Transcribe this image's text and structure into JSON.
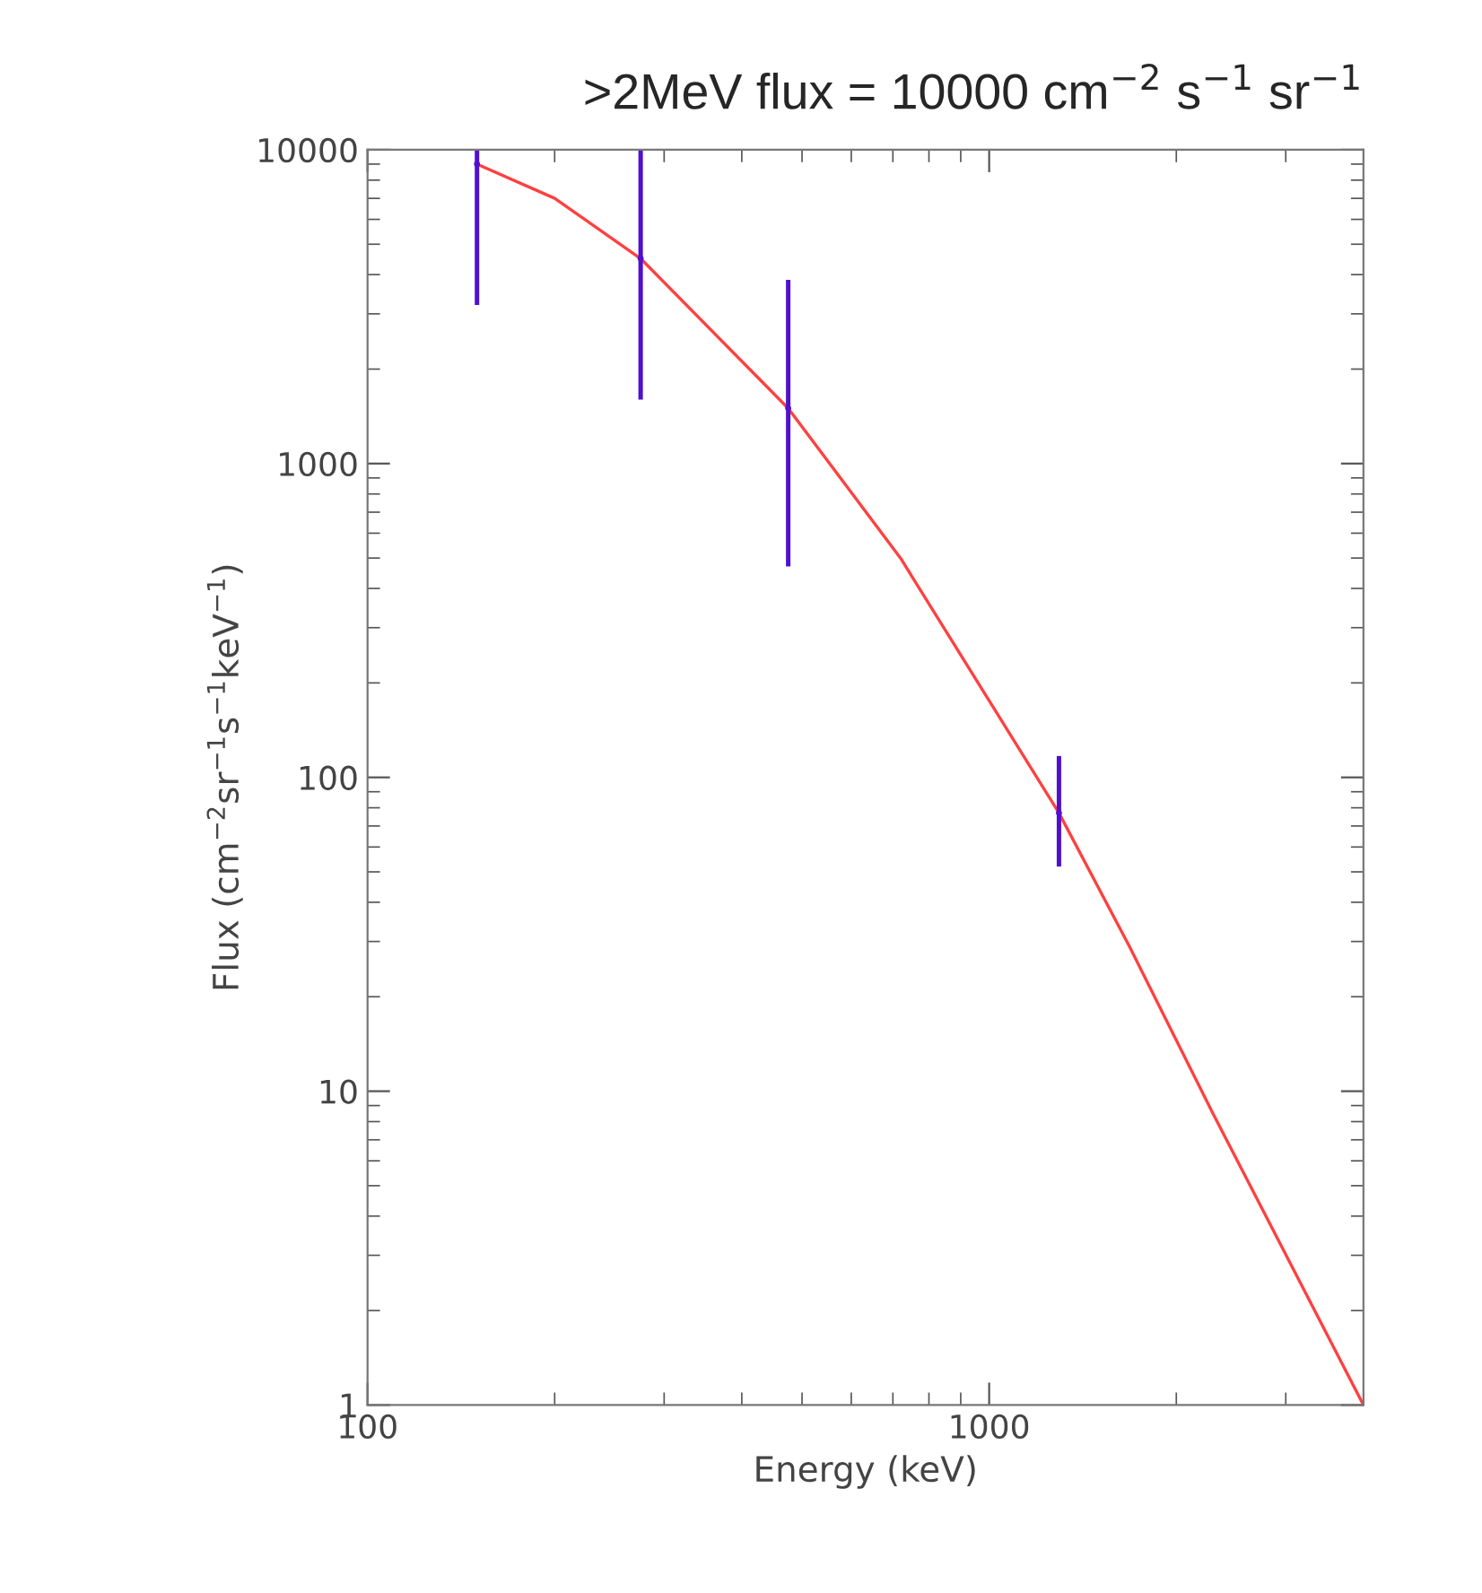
{
  "chart_data": {
    "type": "line",
    "title": ">2MeV flux = 10000 cm$^{−2}$ s$^{−1}$ sr$^{−1}$",
    "xlabel": "Energy (keV)",
    "ylabel": "Flux (cm$^{−2}$sr$^{−1}$s$^{−1}$keV$^{−1}$)",
    "log": "xy",
    "xlim": [
      100,
      4000
    ],
    "ylim": [
      1,
      10000
    ],
    "xticks": [
      100,
      1000
    ],
    "yticks": [
      1,
      10,
      100,
      1000,
      10000
    ],
    "grid": false,
    "legend": false,
    "series": [
      {
        "color": "#ff4040",
        "x": [
          150,
          200,
          275,
          475,
          720,
          1295,
          1680,
          2290,
          4000
        ],
        "values": [
          9000,
          7000,
          4500,
          1500,
          500,
          77,
          29,
          8.5,
          1
        ],
        "marker": "none",
        "line_style": "solid"
      },
      {
        "type": "scatter",
        "color": "#5010d0",
        "x": [
          150,
          275,
          475,
          1295
        ],
        "values": [
          9000,
          4500,
          1500,
          77
        ],
        "errors": [
          [
            3200,
            10000
          ],
          [
            1600,
            10000
          ],
          [
            470,
            3850
          ],
          [
            52,
            117
          ]
        ]
      }
    ]
  }
}
